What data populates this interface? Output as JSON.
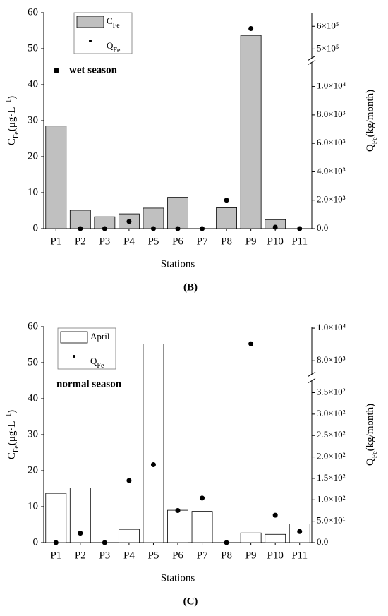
{
  "chart_data": [
    {
      "type": "bar",
      "panel_label": "(B)",
      "xlabel": "Stations",
      "ylabel": [
        {
          "text": "C",
          "shift": ""
        },
        {
          "text": "Fe",
          "shift": "sub"
        },
        {
          "text": "(μg·L",
          "shift": ""
        },
        {
          "text": "−1",
          "shift": "super"
        },
        {
          "text": ")",
          "shift": ""
        }
      ],
      "y2label": [
        {
          "text": "Q",
          "shift": ""
        },
        {
          "text": "Fe",
          "shift": "sub"
        },
        {
          "text": "(kg/month)",
          "shift": ""
        }
      ],
      "annotation": "wet season",
      "categories": [
        "P1",
        "P2",
        "P3",
        "P4",
        "P5",
        "P6",
        "P7",
        "P8",
        "P9",
        "P10",
        "P11"
      ],
      "series": [
        {
          "name": [
            {
              "text": "C",
              "shift": ""
            },
            {
              "text": "Fe",
              "shift": "sub"
            }
          ],
          "kind": "bar",
          "color": "#c0c0c0",
          "values": [
            28.5,
            5.1,
            3.3,
            4.1,
            5.7,
            8.7,
            0,
            5.8,
            53.7,
            2.5,
            0
          ]
        },
        {
          "name": [
            {
              "text": "Q",
              "shift": ""
            },
            {
              "text": "Fe",
              "shift": "sub"
            }
          ],
          "kind": "scatter",
          "color": "#000000",
          "axis": "y2",
          "values": [
            null,
            0,
            0,
            500,
            0,
            0,
            0,
            2000,
            590000,
            100,
            0
          ]
        }
      ],
      "ylim": [
        0,
        60
      ],
      "yticks": [
        0,
        10,
        20,
        30,
        40,
        50,
        60
      ],
      "y2lim": [
        [
          0,
          11700
        ],
        [
          460000,
          660000
        ]
      ],
      "y2ticks": [
        [
          {
            "value": 0,
            "label": "0.0"
          },
          {
            "value": 2000,
            "label": "2.0×10³"
          },
          {
            "value": 4000,
            "label": "4.0×10³"
          },
          {
            "value": 6000,
            "label": "6.0×10³"
          },
          {
            "value": 8000,
            "label": "8.0×10³"
          },
          {
            "value": 10000,
            "label": "1.0×10⁴"
          }
        ],
        [
          {
            "value": 500000,
            "label": "5×10⁵"
          },
          {
            "value": 600000,
            "label": "6×10⁵"
          }
        ]
      ],
      "legend": true
    },
    {
      "type": "bar",
      "panel_label": "(C)",
      "xlabel": "Stations",
      "ylabel": [
        {
          "text": "C",
          "shift": ""
        },
        {
          "text": "Fe",
          "shift": "sub"
        },
        {
          "text": "(μg·L",
          "shift": ""
        },
        {
          "text": "−1",
          "shift": "super"
        },
        {
          "text": ")",
          "shift": ""
        }
      ],
      "y2label": [
        {
          "text": "Q",
          "shift": ""
        },
        {
          "text": "Fe",
          "shift": "sub"
        },
        {
          "text": "(kg/month)",
          "shift": ""
        }
      ],
      "annotation": "normal season",
      "categories": [
        "P1",
        "P2",
        "P3",
        "P4",
        "P5",
        "P6",
        "P7",
        "P8",
        "P9",
        "P10",
        "P11"
      ],
      "series": [
        {
          "name": [
            {
              "text": "April",
              "shift": ""
            }
          ],
          "kind": "bar",
          "color": "#ffffff",
          "values": [
            13.7,
            15.2,
            0,
            3.7,
            55.2,
            9.0,
            8.7,
            0,
            2.7,
            2.3,
            5.2
          ]
        },
        {
          "name": [
            {
              "text": "Q",
              "shift": ""
            },
            {
              "text": "Fe",
              "shift": "sub"
            }
          ],
          "kind": "scatter",
          "color": "#000000",
          "axis": "y2",
          "values": [
            0,
            22,
            0,
            145,
            182,
            75,
            104,
            0,
            9040,
            64,
            26
          ]
        }
      ],
      "ylim": [
        0,
        60
      ],
      "yticks": [
        0,
        10,
        20,
        30,
        40,
        50,
        60
      ],
      "y2lim": [
        [
          0,
          378
        ],
        [
          7170,
          10090
        ]
      ],
      "y2ticks": [
        [
          {
            "value": 0,
            "label": "0.0"
          },
          {
            "value": 50,
            "label": "5.0×10¹"
          },
          {
            "value": 100,
            "label": "1.0×10²"
          },
          {
            "value": 150,
            "label": "1.5×10²"
          },
          {
            "value": 200,
            "label": "2.0×10²"
          },
          {
            "value": 250,
            "label": "2.5×10²"
          },
          {
            "value": 300,
            "label": "3.0×10²"
          },
          {
            "value": 350,
            "label": "3.5×10²"
          }
        ],
        [
          {
            "value": 8000,
            "label": "8.0×10³"
          },
          {
            "value": 10000,
            "label": "1.0×10⁴"
          }
        ]
      ],
      "legend": true
    }
  ]
}
